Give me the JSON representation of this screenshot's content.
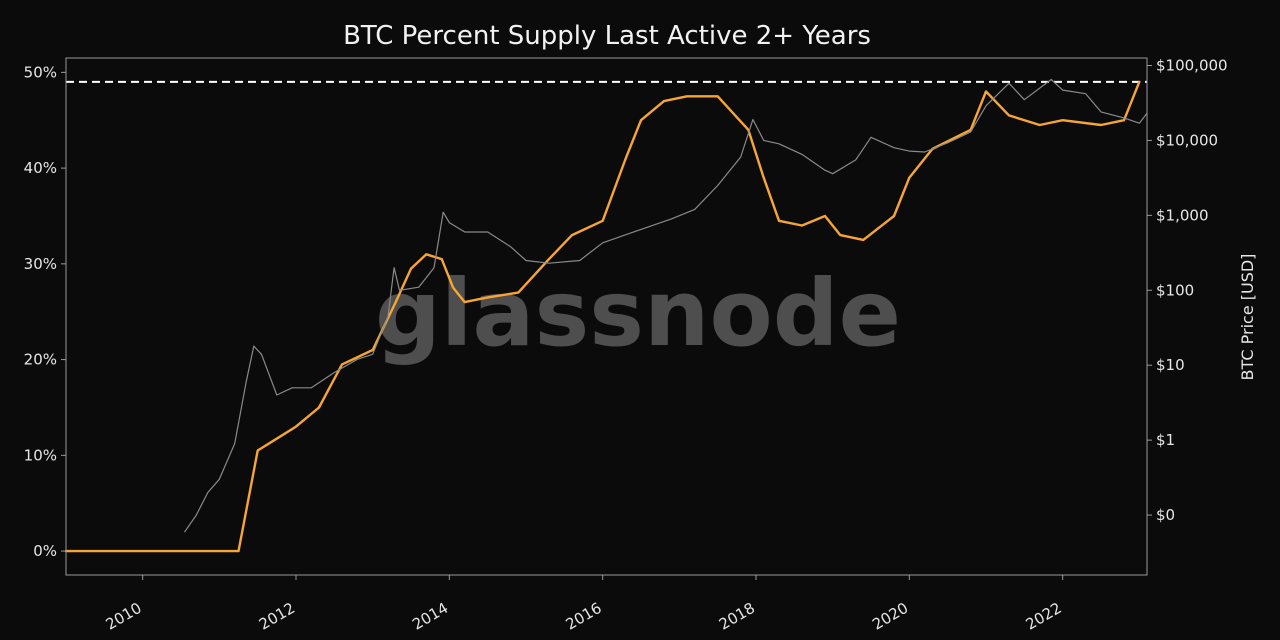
{
  "chart_data": {
    "type": "line",
    "title": "BTC Percent Supply Last Active 2+ Years",
    "watermark": "glassnode",
    "x_ticks": [
      "2010",
      "2012",
      "2014",
      "2016",
      "2018",
      "2020",
      "2022"
    ],
    "x_tick_values": [
      2010,
      2012,
      2014,
      2016,
      2018,
      2020,
      2022
    ],
    "xlim": [
      2009.0,
      2023.1
    ],
    "left_axis": {
      "label": "",
      "ylim": [
        -2.5,
        51.5
      ],
      "ticks": [
        0,
        10,
        20,
        30,
        40,
        50
      ],
      "tick_labels": [
        "0%",
        "10%",
        "20%",
        "30%",
        "40%",
        "50%"
      ]
    },
    "right_axis": {
      "label": "BTC Price [USD]",
      "scale": "log",
      "tick_labels": [
        "$0",
        "$1",
        "$10",
        "$100",
        "$1,000",
        "$10,000",
        "$100,000"
      ],
      "tick_values": [
        0.1,
        1,
        10,
        100,
        1000,
        10000,
        100000
      ],
      "ylim_log10": [
        -1.8,
        5.1
      ]
    },
    "reference_line": {
      "value": 49.0,
      "style": "dashed",
      "color": "#ffffff"
    },
    "series": [
      {
        "name": "Percent Supply Last Active 2+ Years",
        "axis": "left",
        "color": "#f7a535",
        "x": [
          2009.0,
          2010.9,
          2011.1,
          2011.25,
          2011.5,
          2011.8,
          2012.0,
          2012.3,
          2012.6,
          2013.0,
          2013.3,
          2013.5,
          2013.7,
          2013.9,
          2014.05,
          2014.2,
          2014.5,
          2014.9,
          2015.3,
          2015.6,
          2016.0,
          2016.3,
          2016.5,
          2016.8,
          2017.1,
          2017.5,
          2017.9,
          2018.1,
          2018.3,
          2018.6,
          2018.9,
          2019.1,
          2019.4,
          2019.8,
          2020.0,
          2020.3,
          2020.8,
          2021.0,
          2021.3,
          2021.7,
          2022.0,
          2022.5,
          2022.8,
          2023.0
        ],
        "values": [
          0,
          0,
          0,
          0,
          10.5,
          12.0,
          13.0,
          15.0,
          19.5,
          21.0,
          26.0,
          29.5,
          31.0,
          30.5,
          27.5,
          26.0,
          26.5,
          27.0,
          30.5,
          33.0,
          34.5,
          41.0,
          45.0,
          47.0,
          47.5,
          47.5,
          44.0,
          39.0,
          34.5,
          34.0,
          35.0,
          33.0,
          32.5,
          35.0,
          39.0,
          42.0,
          44.0,
          48.0,
          45.5,
          44.5,
          45.0,
          44.5,
          45.0,
          49.0
        ]
      },
      {
        "name": "BTC Price [USD]",
        "axis": "right",
        "color": "#8a8a8a",
        "x": [
          2010.55,
          2010.7,
          2010.85,
          2011.0,
          2011.2,
          2011.35,
          2011.45,
          2011.55,
          2011.75,
          2011.95,
          2012.2,
          2012.5,
          2012.8,
          2013.0,
          2013.2,
          2013.28,
          2013.35,
          2013.6,
          2013.8,
          2013.92,
          2014.0,
          2014.2,
          2014.5,
          2014.8,
          2015.0,
          2015.3,
          2015.7,
          2016.0,
          2016.5,
          2016.9,
          2017.2,
          2017.5,
          2017.8,
          2017.96,
          2018.1,
          2018.3,
          2018.6,
          2018.9,
          2019.0,
          2019.3,
          2019.5,
          2019.8,
          2020.0,
          2020.2,
          2020.5,
          2020.8,
          2021.0,
          2021.3,
          2021.5,
          2021.85,
          2022.0,
          2022.3,
          2022.5,
          2022.8,
          2023.0,
          2023.1
        ],
        "values": [
          0.06,
          0.1,
          0.2,
          0.3,
          0.9,
          6,
          18,
          14,
          4,
          5,
          5,
          8,
          12,
          14,
          45,
          200,
          100,
          110,
          200,
          1100,
          800,
          600,
          600,
          380,
          250,
          230,
          250,
          430,
          650,
          900,
          1200,
          2500,
          6000,
          19000,
          10000,
          9000,
          6500,
          4000,
          3600,
          5500,
          11000,
          8000,
          7200,
          7000,
          9300,
          13000,
          29000,
          58000,
          35000,
          65000,
          47000,
          42000,
          24000,
          20000,
          17000,
          23000
        ]
      }
    ]
  }
}
